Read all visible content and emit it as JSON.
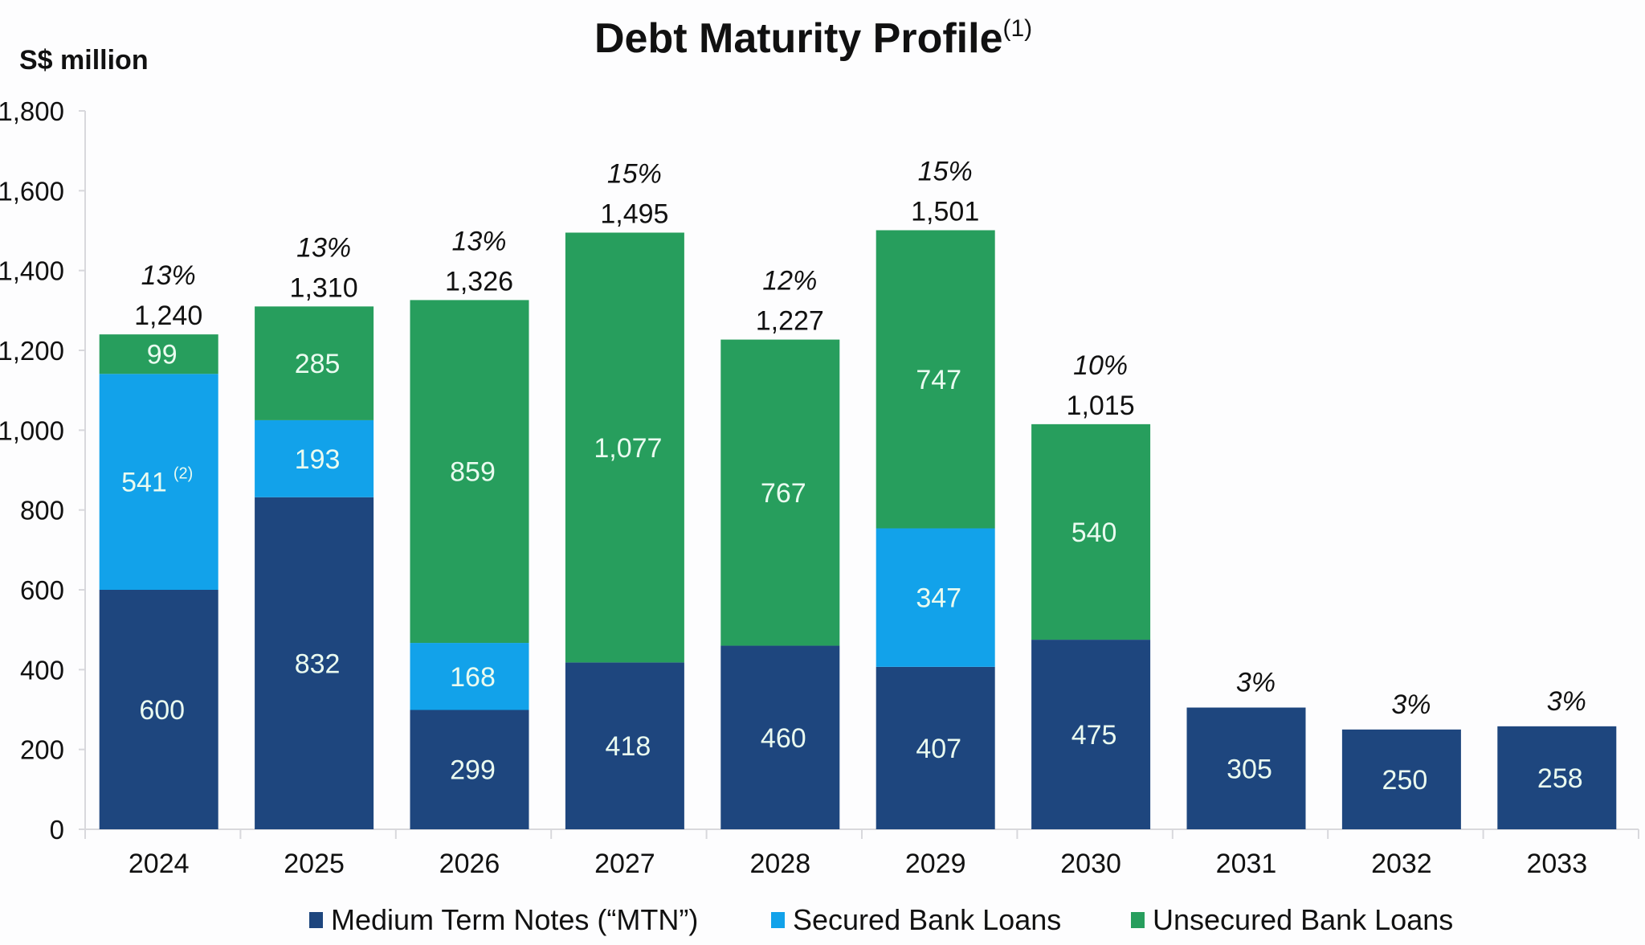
{
  "chart_data": {
    "type": "bar",
    "stacked": true,
    "title": "Debt Maturity Profile",
    "title_footnote": "(1)",
    "ylabel": "S$ million",
    "xlabel": "",
    "ylim": [
      0,
      1800
    ],
    "yticks": [
      0,
      200,
      400,
      600,
      800,
      1000,
      1200,
      1400,
      1600,
      1800
    ],
    "ytick_labels": [
      "0",
      "200",
      "400",
      "600",
      "800",
      "1,000",
      "1,200",
      "1,400",
      "1,600",
      "1,800"
    ],
    "grid": false,
    "legend_position": "bottom",
    "categories": [
      "2024",
      "2025",
      "2026",
      "2027",
      "2028",
      "2029",
      "2030",
      "2031",
      "2032",
      "2033"
    ],
    "series": [
      {
        "name": "Medium Term Notes (“MTN”)",
        "color": "#1e467e",
        "values": [
          600,
          832,
          299,
          418,
          460,
          407,
          475,
          305,
          250,
          258
        ]
      },
      {
        "name": "Secured Bank Loans",
        "color": "#12a2ea",
        "values": [
          541,
          193,
          168,
          0,
          0,
          347,
          0,
          0,
          0,
          0
        ]
      },
      {
        "name": "Unsecured Bank Loans",
        "color": "#279e5d",
        "values": [
          99,
          285,
          859,
          1077,
          767,
          747,
          540,
          0,
          0,
          0
        ]
      }
    ],
    "segment_footnotes": [
      {
        "category": "2024",
        "series": "Secured Bank Loans",
        "note": "(2)"
      }
    ],
    "totals": [
      "1,240",
      "1,310",
      "1,326",
      "1,495",
      "1,227",
      "1,501",
      "1,015",
      "",
      "",
      ""
    ],
    "percentages": [
      "13%",
      "13%",
      "13%",
      "15%",
      "12%",
      "15%",
      "10%",
      "3%",
      "3%",
      "3%"
    ]
  }
}
